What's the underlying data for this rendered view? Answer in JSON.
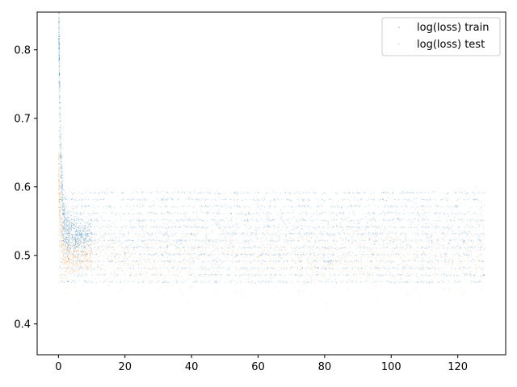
{
  "chart_data": {
    "type": "scatter",
    "title": "",
    "xlabel": "",
    "ylabel": "",
    "xlim": [
      -6.4,
      134.4
    ],
    "ylim": [
      0.355,
      0.855
    ],
    "xticks": [
      0,
      20,
      40,
      60,
      80,
      100,
      120
    ],
    "yticks": [
      0.4,
      0.5,
      0.6,
      0.7,
      0.8
    ],
    "xtick_labels": [
      "0",
      "20",
      "40",
      "60",
      "80",
      "100",
      "120"
    ],
    "ytick_labels": [
      "0.4",
      "0.5",
      "0.6",
      "0.7",
      "0.8"
    ],
    "grid": false,
    "legend_position": "top-right",
    "series": [
      {
        "name": "log(loss) train",
        "color": "#1f77b4",
        "x_range": [
          0,
          128
        ],
        "y_bands": [
          0.462,
          0.472,
          0.482,
          0.492,
          0.502,
          0.512,
          0.522,
          0.532,
          0.542,
          0.552,
          0.562,
          0.572,
          0.582,
          0.592
        ],
        "y_center": 0.53,
        "early_peak": 0.84
      },
      {
        "name": "log(loss) test",
        "color": "#ff7f0e",
        "x_range": [
          0,
          128
        ],
        "y_center": 0.5,
        "early_peak": 0.62
      }
    ]
  }
}
